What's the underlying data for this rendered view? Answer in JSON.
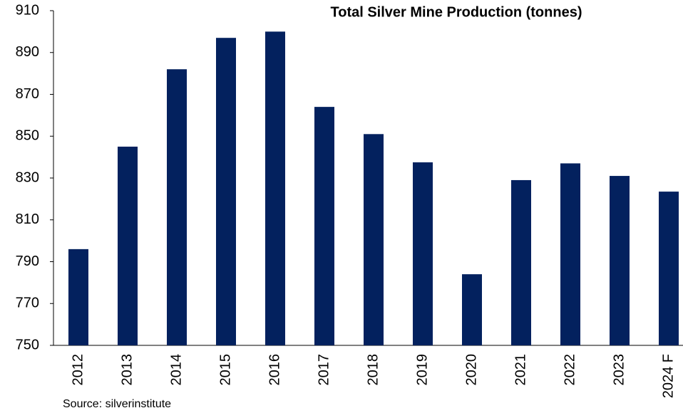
{
  "chart_data": {
    "type": "bar",
    "title": "Total Silver Mine Production (tonnes)",
    "categories": [
      "2012",
      "2013",
      "2014",
      "2015",
      "2016",
      "2017",
      "2018",
      "2019",
      "2020",
      "2021",
      "2022",
      "2023",
      "2024 F"
    ],
    "values": [
      796,
      845,
      882,
      897,
      900,
      864,
      851,
      837.5,
      784,
      829,
      837,
      831,
      823.5
    ],
    "color": "#03215e",
    "ylim": [
      750,
      910
    ],
    "yticks": [
      750,
      770,
      790,
      810,
      830,
      850,
      870,
      890,
      910
    ],
    "grid": false,
    "source": "Source: silverinstitute"
  }
}
